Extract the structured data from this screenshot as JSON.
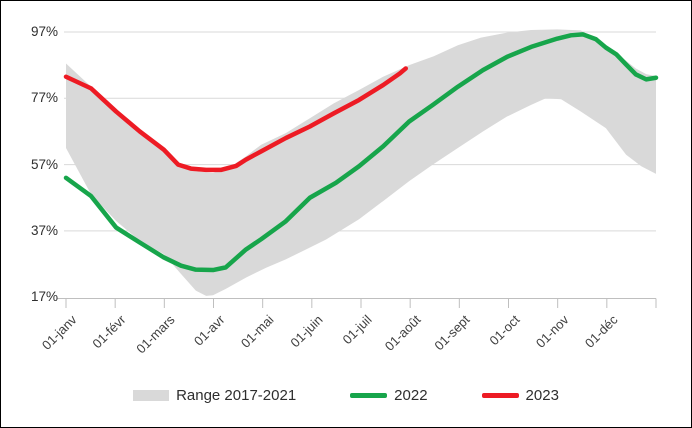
{
  "chart": {
    "y_axis": {
      "tick_labels": [
        "97%",
        "77%",
        "57%",
        "37%",
        "17%"
      ],
      "tick_values": [
        97,
        77,
        57,
        37,
        17
      ]
    },
    "x_axis": {
      "labels": [
        "01-janv",
        "01-févr",
        "01-mars",
        "01-avr",
        "01-mai",
        "01-juin",
        "01-juil",
        "01-août",
        "01-sept",
        "01-oct",
        "01-nov",
        "01-déc"
      ]
    },
    "legend": [
      {
        "label": "Range 2017-2021",
        "type": "band",
        "color": "#d9d9d9"
      },
      {
        "label": "2022",
        "type": "line",
        "color": "#17a54b"
      },
      {
        "label": "2023",
        "type": "line",
        "color": "#ed1b24"
      }
    ],
    "colors": {
      "band": "#d9d9d9",
      "gridline": "#d9d9d9",
      "axis": "#bfbfbf",
      "series_2022": "#17a54b",
      "series_2023": "#ed1b24"
    }
  },
  "chart_data": {
    "type": "line",
    "title": "",
    "xlabel": "",
    "ylabel": "",
    "x_unit": "months (0 = 01-janv, 12 = 31-déc)",
    "y_unit": "percent",
    "ylim": [
      17,
      97
    ],
    "grid": "horizontal",
    "legend_position": "bottom",
    "series": [
      {
        "name": "Range 2017-2021 (upper bound)",
        "role": "band-top",
        "points": [
          [
            0,
            87.5
          ],
          [
            0.51,
            80.5
          ],
          [
            1.02,
            73.5
          ],
          [
            1.5,
            67
          ],
          [
            1.99,
            61.5
          ],
          [
            2.34,
            56.5
          ],
          [
            2.64,
            55
          ],
          [
            2.99,
            54.5
          ],
          [
            3.36,
            56.5
          ],
          [
            3.66,
            59.5
          ],
          [
            3.97,
            63
          ],
          [
            4.47,
            66.5
          ],
          [
            4.96,
            71
          ],
          [
            5.45,
            75.5
          ],
          [
            5.96,
            79.5
          ],
          [
            6.45,
            83.5
          ],
          [
            6.98,
            87
          ],
          [
            7.48,
            89.7
          ],
          [
            7.97,
            93
          ],
          [
            8.44,
            95.3
          ],
          [
            8.97,
            96.8
          ],
          [
            9.46,
            97.6
          ],
          [
            9.99,
            97.8
          ],
          [
            10.47,
            97.5
          ],
          [
            10.98,
            93
          ],
          [
            11.29,
            89.5
          ],
          [
            11.59,
            86
          ],
          [
            11.8,
            84.3
          ],
          [
            12,
            83.7
          ]
        ]
      },
      {
        "name": "Range 2017-2021 (lower bound)",
        "role": "band-bottom",
        "points": [
          [
            0,
            62
          ],
          [
            0.51,
            48
          ],
          [
            1.02,
            40
          ],
          [
            1.5,
            34
          ],
          [
            1.99,
            30
          ],
          [
            2.34,
            24
          ],
          [
            2.64,
            19
          ],
          [
            2.85,
            17.4
          ],
          [
            2.99,
            17.6
          ],
          [
            3.25,
            19.5
          ],
          [
            3.66,
            22.9
          ],
          [
            4.07,
            25.9
          ],
          [
            4.47,
            28.4
          ],
          [
            4.88,
            31.4
          ],
          [
            5.29,
            34.4
          ],
          [
            5.96,
            40.5
          ],
          [
            6.45,
            46
          ],
          [
            6.98,
            52
          ],
          [
            7.46,
            57
          ],
          [
            7.97,
            62
          ],
          [
            8.48,
            67
          ],
          [
            8.97,
            71.5
          ],
          [
            9.46,
            75
          ],
          [
            9.76,
            77
          ],
          [
            10.07,
            76.7
          ],
          [
            10.47,
            73
          ],
          [
            10.98,
            68
          ],
          [
            11.39,
            60
          ],
          [
            11.7,
            56.5
          ],
          [
            12,
            54.2
          ]
        ]
      },
      {
        "name": "2022",
        "role": "line",
        "color": "#17a54b",
        "points": [
          [
            0,
            53
          ],
          [
            0.51,
            47.5
          ],
          [
            1.02,
            38
          ],
          [
            1.5,
            33.5
          ],
          [
            1.99,
            29
          ],
          [
            2.34,
            26.5
          ],
          [
            2.64,
            25.3
          ],
          [
            2.99,
            25.2
          ],
          [
            3.25,
            26
          ],
          [
            3.66,
            31.4
          ],
          [
            3.97,
            34.5
          ],
          [
            4.47,
            39.9
          ],
          [
            4.96,
            47
          ],
          [
            5.49,
            51.5
          ],
          [
            5.96,
            56.5
          ],
          [
            6.45,
            62.5
          ],
          [
            6.98,
            70
          ],
          [
            7.46,
            75
          ],
          [
            7.97,
            80.5
          ],
          [
            8.48,
            85.5
          ],
          [
            8.97,
            89.5
          ],
          [
            9.46,
            92.5
          ],
          [
            9.99,
            95
          ],
          [
            10.27,
            96
          ],
          [
            10.51,
            96.3
          ],
          [
            10.78,
            94.8
          ],
          [
            10.98,
            92.3
          ],
          [
            11.19,
            90.3
          ],
          [
            11.39,
            87.2
          ],
          [
            11.59,
            84.2
          ],
          [
            11.8,
            82.7
          ],
          [
            12,
            83.2
          ]
        ]
      },
      {
        "name": "2023",
        "role": "line",
        "color": "#ed1b24",
        "points": [
          [
            0,
            83.5
          ],
          [
            0.51,
            80
          ],
          [
            1.02,
            73
          ],
          [
            1.5,
            67
          ],
          [
            1.99,
            61.5
          ],
          [
            2.28,
            57
          ],
          [
            2.54,
            55.8
          ],
          [
            2.85,
            55.4
          ],
          [
            3.15,
            55.4
          ],
          [
            3.46,
            56.6
          ],
          [
            3.66,
            58.5
          ],
          [
            3.97,
            61
          ],
          [
            4.47,
            65
          ],
          [
            4.96,
            68.5
          ],
          [
            5.45,
            72.5
          ],
          [
            5.96,
            76.5
          ],
          [
            6.45,
            81
          ],
          [
            6.79,
            84.5
          ],
          [
            6.91,
            86
          ]
        ]
      }
    ]
  }
}
